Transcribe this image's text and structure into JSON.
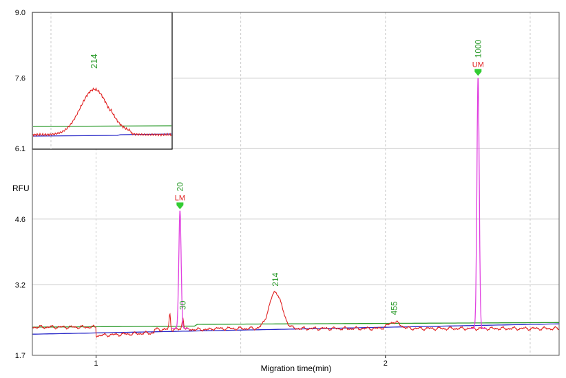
{
  "chart_data": {
    "type": "line",
    "title": "",
    "xlabel": "Migration time(min)",
    "ylabel": "RFU",
    "xlim": [
      0.78,
      2.6
    ],
    "ylim": [
      1.7,
      9.0
    ],
    "y_ticks": [
      "1.7",
      "3.2",
      "4.6",
      "6.1",
      "7.6",
      "9.0"
    ],
    "x_ticks": [
      "1",
      "2"
    ],
    "grid": true,
    "colors": {
      "signal": "#e02020",
      "markers": "#e040e0",
      "baseline_green": "#2a9a2a",
      "baseline_blue": "#2a2ac8",
      "size_label": "#2a9a2a",
      "marker_label": "#e02020",
      "arrow": "#33cc33"
    },
    "peaks": [
      {
        "size": "20",
        "x": 1.29,
        "y": 4.78,
        "marker": "LM"
      },
      {
        "size": "30",
        "x": 1.3,
        "y": 2.55
      },
      {
        "size": "214",
        "x": 1.62,
        "y": 3.05
      },
      {
        "size": "455",
        "x": 2.03,
        "y": 2.44
      },
      {
        "size": "1000",
        "x": 2.32,
        "y": 7.62,
        "marker": "UM"
      }
    ],
    "inset": {
      "peak_label": "214"
    }
  }
}
